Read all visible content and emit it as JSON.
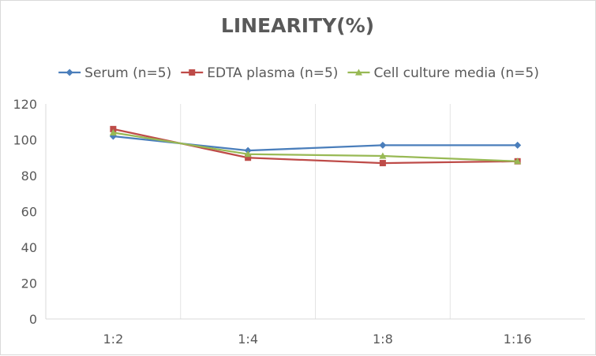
{
  "chart_data": {
    "type": "line",
    "title": "LINEARITY(%)",
    "xlabel": "",
    "ylabel": "",
    "categories": [
      "1:2",
      "1:4",
      "1:8",
      "1:16"
    ],
    "ylim": [
      0,
      120
    ],
    "yticks": [
      0,
      20,
      40,
      60,
      80,
      100,
      120
    ],
    "grid": "vertical lines between categories",
    "legend_position": "top",
    "series": [
      {
        "name": "Serum (n=5)",
        "values": [
          102,
          94,
          97,
          97
        ],
        "color": "#4a7ebb",
        "marker": "diamond"
      },
      {
        "name": "EDTA plasma (n=5)",
        "values": [
          106,
          90,
          87,
          88
        ],
        "color": "#be4b48",
        "marker": "square"
      },
      {
        "name": "Cell culture media (n=5)",
        "values": [
          104,
          92,
          91,
          88
        ],
        "color": "#98b954",
        "marker": "triangle"
      }
    ]
  }
}
